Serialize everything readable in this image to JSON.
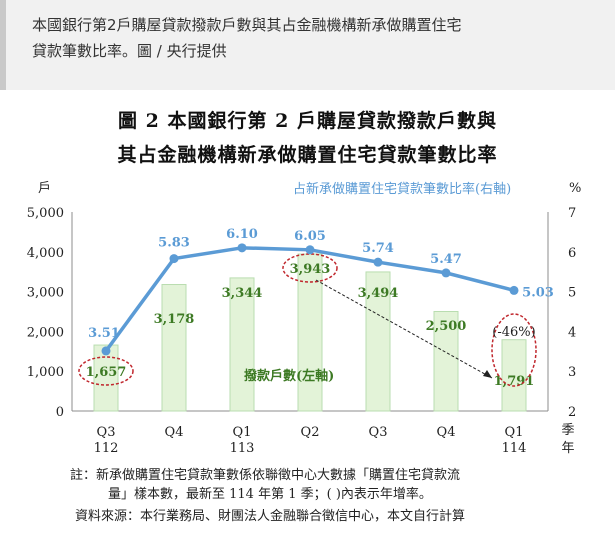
{
  "caption": {
    "line1": "本國銀行第2戶購屋貸款撥款戶數與其占金融機構新承做購置住宅",
    "line2": "貸款筆數比率。圖 / 央行提供"
  },
  "chart_data": {
    "type": "bar+line",
    "title_line1": "圖 2  本國銀行第 2 戶購屋貸款撥款戶數與",
    "title_line2": "其占金融機構新承做購置住宅貸款筆數比率",
    "categories": [
      "Q3",
      "Q4",
      "Q1",
      "Q2",
      "Q3",
      "Q4",
      "Q1"
    ],
    "category_years": [
      "112",
      "",
      "113",
      "",
      "",
      "",
      "114"
    ],
    "x_axis_unit": "季 年",
    "left_axis": {
      "unit": "戶",
      "min": 0,
      "max": 5000,
      "step": 1000,
      "ticks": [
        "0",
        "1,000",
        "2,000",
        "3,000",
        "4,000",
        "5,000"
      ]
    },
    "right_axis": {
      "unit": "%",
      "min": 2,
      "max": 7,
      "step": 1,
      "ticks": [
        "2",
        "3",
        "4",
        "5",
        "6",
        "7"
      ]
    },
    "series": [
      {
        "name": "撥款戶數(左軸)",
        "axis": "left",
        "kind": "bar",
        "values": [
          1657,
          3178,
          3344,
          3943,
          3494,
          2500,
          1791
        ],
        "labels": [
          "1,657",
          "3,178",
          "3,344",
          "3,943",
          "3,494",
          "2,500",
          "1,791"
        ],
        "color": "#e3f3d8",
        "border": "#b9ddb0",
        "label_color": "#3d7a24"
      },
      {
        "name": "占新承做購置住宅貸款筆數比率(右軸)",
        "axis": "right",
        "kind": "line",
        "values": [
          3.51,
          5.83,
          6.1,
          6.05,
          5.74,
          5.47,
          5.03
        ],
        "labels": [
          "3.51",
          "5.83",
          "6.10",
          "6.05",
          "5.74",
          "5.47",
          "5.03"
        ],
        "color": "#5b9bd5"
      }
    ],
    "annotation_change": "(-46%)",
    "highlighted_bars": [
      0,
      3,
      6
    ]
  },
  "notes": {
    "line1": "註：新承做購置住宅貸款筆數係依聯徵中心大數據「購置住宅貸款流",
    "line2": "量」樣本數，最新至 114 年第 1 季；( )內表示年增率。",
    "line3": "資料來源：本行業務局、財團法人金融聯合徵信中心，本文自行計算"
  }
}
